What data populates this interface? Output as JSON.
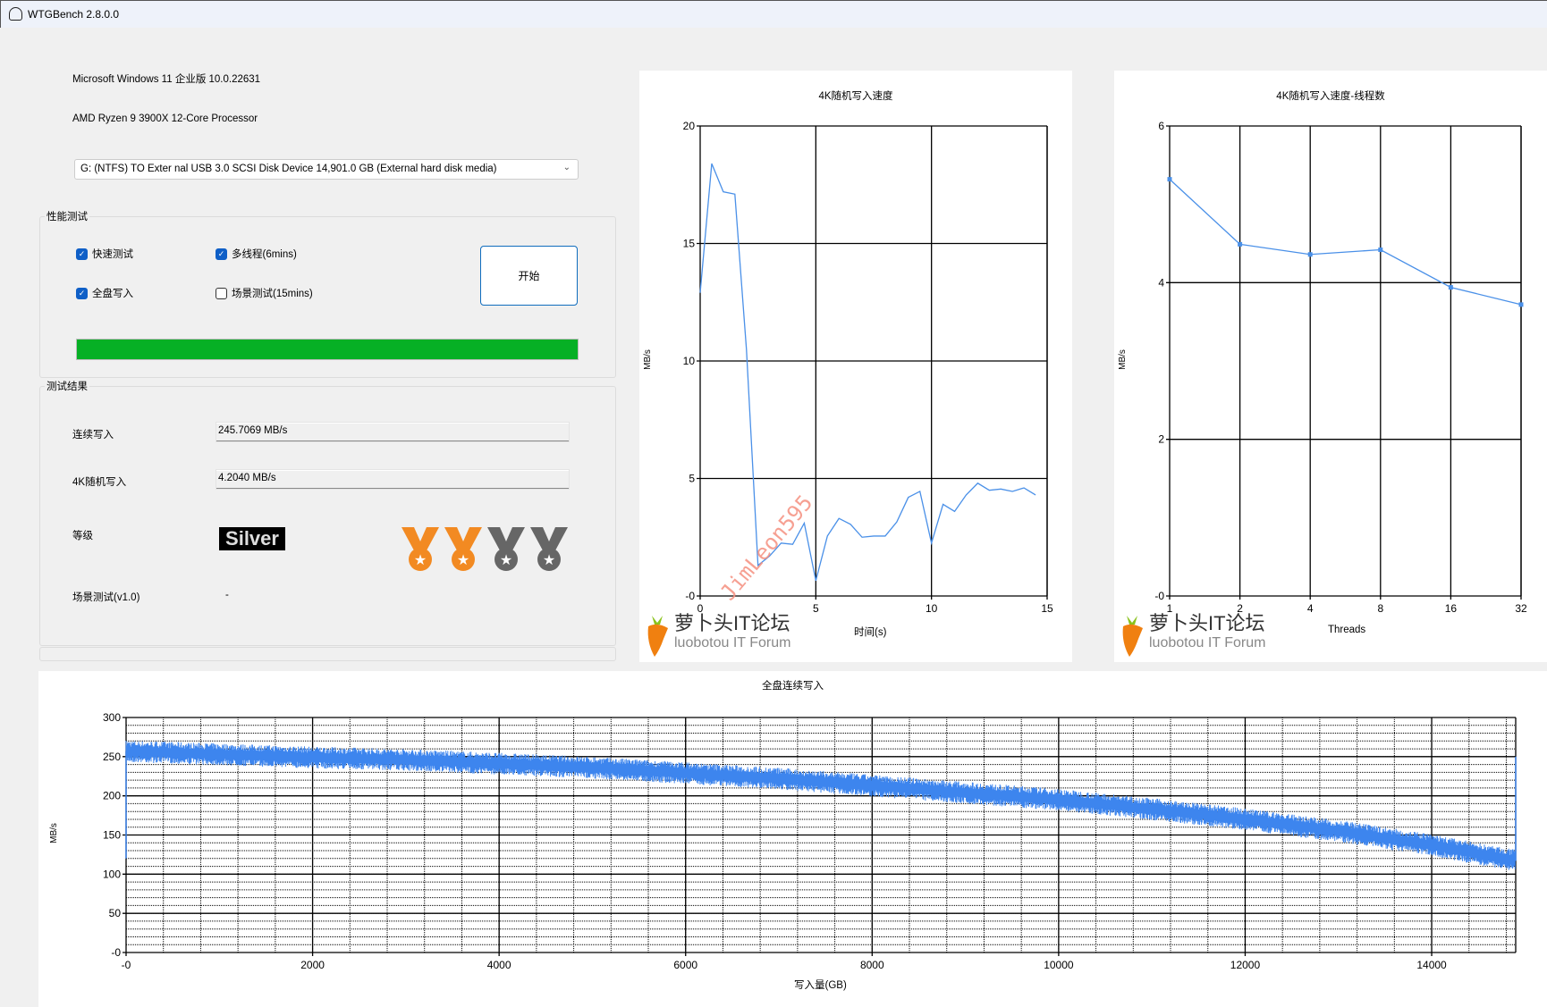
{
  "window": {
    "title": "WTGBench 2.8.0.0"
  },
  "system": {
    "os": "Microsoft Windows 11 企业版 10.0.22631",
    "cpu": "AMD Ryzen 9 3900X 12-Core Processor"
  },
  "disk_select": {
    "value": "G:  (NTFS) TO Exter nal USB 3.0 SCSI Disk Device 14,901.0 GB (External hard disk media)"
  },
  "perf_group": {
    "label": "性能测试",
    "options": [
      {
        "label": "快速测试",
        "checked": true
      },
      {
        "label": "多线程(6mins)",
        "checked": true
      },
      {
        "label": "全盘写入",
        "checked": true
      },
      {
        "label": "场景测试(15mins)",
        "checked": false
      }
    ],
    "start_label": "开始",
    "progress_percent": 100,
    "progress_color": "#06b025"
  },
  "results_group": {
    "label": "测试结果",
    "seq_write_label": "连续写入",
    "seq_write_value": "245.7069 MB/s",
    "rand4k_label": "4K随机写入",
    "rand4k_value": "4.2040 MB/s",
    "grade_label": "等级",
    "grade_value": "Silver",
    "medals": {
      "earned": 2,
      "total": 4,
      "earned_color": "#f28a22",
      "unearned_color": "#666666"
    },
    "scenario_label": "场景测试(v1.0)",
    "scenario_value": "-"
  },
  "watermarks": {
    "logo_cn": "萝卜头IT论坛",
    "logo_en": "luobotou IT Forum",
    "author": "JimLeon595"
  },
  "chart_data": [
    {
      "type": "line",
      "title": "4K随机写入速度",
      "xlabel": "时间(s)",
      "ylabel": "MB/s",
      "xlim": [
        0,
        15
      ],
      "ylim": [
        0,
        20
      ],
      "xticks": [
        "0",
        "5",
        "10",
        "15"
      ],
      "yticks": [
        "-0",
        "5",
        "10",
        "15",
        "20"
      ],
      "grid": true,
      "color": "#4a90e8",
      "x": [
        0,
        0.5,
        1,
        1.5,
        2,
        2.5,
        3,
        3.5,
        4,
        4.5,
        5,
        5.5,
        6,
        6.5,
        7,
        7.5,
        8,
        8.5,
        9,
        9.5,
        10,
        10.5,
        11,
        11.5,
        12,
        12.5,
        13,
        13.5,
        14,
        14.5
      ],
      "y": [
        12.9,
        18.4,
        17.2,
        17.1,
        10.5,
        1.3,
        1.7,
        2.25,
        2.2,
        3.1,
        0.65,
        2.55,
        3.3,
        3.05,
        2.5,
        2.55,
        2.55,
        3.15,
        4.2,
        4.45,
        2.25,
        3.9,
        3.6,
        4.3,
        4.8,
        4.5,
        4.55,
        4.45,
        4.6,
        4.3
      ]
    },
    {
      "type": "line",
      "title": "4K随机写入速度-线程数",
      "xlabel": "Threads",
      "ylabel": "MB/s",
      "ylim": [
        0,
        6
      ],
      "categories": [
        "1",
        "2",
        "4",
        "8",
        "16",
        "32"
      ],
      "yticks": [
        "-0",
        "2",
        "4",
        "6"
      ],
      "grid": true,
      "color": "#4a90e8",
      "y": [
        5.32,
        4.49,
        4.36,
        4.42,
        3.94,
        3.72
      ]
    },
    {
      "type": "line",
      "title": "全盘连续写入",
      "xlabel": "写入量(GB)",
      "ylabel": "MB/s",
      "xlim": [
        0,
        14901
      ],
      "ylim": [
        0,
        300
      ],
      "xticks": [
        "-0",
        "2000",
        "4000",
        "6000",
        "8000",
        "10000",
        "12000",
        "14000"
      ],
      "yticks": [
        "-0",
        "50",
        "100",
        "150",
        "200",
        "250",
        "300"
      ],
      "grid": true,
      "minor_grid": true,
      "color": "#3d85ee",
      "x": [
        0,
        1000,
        2000,
        3000,
        4000,
        5000,
        6000,
        7000,
        8000,
        9000,
        10000,
        11000,
        12000,
        13000,
        14000,
        14901
      ],
      "y": [
        257,
        253,
        249,
        246,
        241,
        236,
        229,
        222,
        213,
        204,
        195,
        183,
        170,
        155,
        137,
        117
      ],
      "noise_range": 14
    }
  ]
}
